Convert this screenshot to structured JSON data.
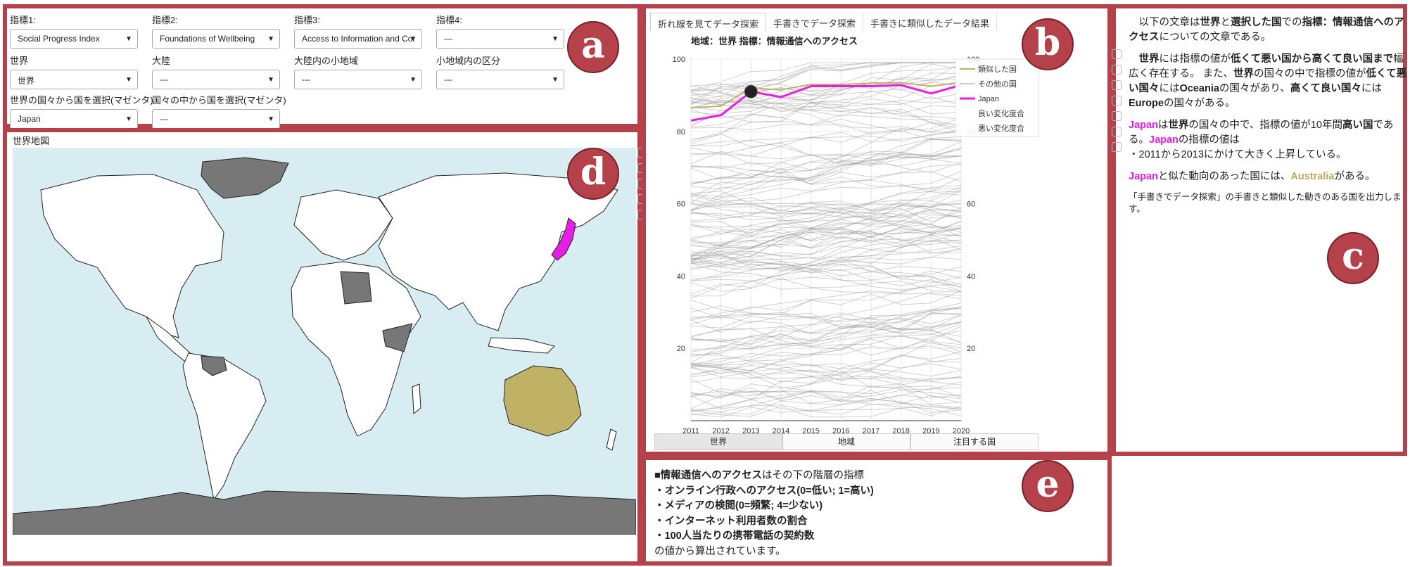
{
  "badges": {
    "a": "a",
    "b": "b",
    "c": "c",
    "d": "d",
    "e": "e"
  },
  "controls": {
    "indicator1": {
      "label": "指標1:",
      "value": "Social Progress Index"
    },
    "indicator2": {
      "label": "指標2:",
      "value": "Foundations of Wellbeing"
    },
    "indicator3": {
      "label": "指標3:",
      "value": "Access to Information and Cor"
    },
    "indicator4": {
      "label": "指標4:",
      "value": "---"
    },
    "world": {
      "label": "世界",
      "value": "世界"
    },
    "continent": {
      "label": "大陸",
      "value": "---"
    },
    "subregion": {
      "label": "大陸内の小地域",
      "value": "---"
    },
    "subdivision": {
      "label": "小地域内の区分",
      "value": "---"
    },
    "country_world": {
      "label": "世界の国々から国を選択(マゼンタ)",
      "value": "Japan"
    },
    "country_within": {
      "label": "国々の中から国を選択(マゼンタ)",
      "value": "---"
    }
  },
  "map": {
    "title": "世界地図",
    "ocean_color": "#d7edf2",
    "land_color": "#ffffff",
    "grey_color": "#7a7a7a",
    "japan_color": "#e61ee6",
    "australia_color": "#bfb265"
  },
  "chart_tabs": [
    "折れ線を見てデータ探索",
    "手書きでデータ探索",
    "手書きに類似したデータ結果"
  ],
  "bottom_tabs": [
    "世界",
    "地域",
    "注目する国"
  ],
  "chart_data": {
    "type": "line",
    "title": "地域：世界  指標：情報通信へのアクセス",
    "x": [
      2011,
      2012,
      2013,
      2014,
      2015,
      2016,
      2017,
      2018,
      2019,
      2020
    ],
    "ylim": [
      0,
      100
    ],
    "yticks": [
      20,
      40,
      60,
      80,
      100
    ],
    "legend_position": "top-right",
    "legend": [
      "類似した国",
      "その他の国",
      "Japan",
      "良い変化度合",
      "悪い変化度合"
    ],
    "series": [
      {
        "name": "Japan",
        "color": "#e61ee6",
        "values": [
          83,
          84.5,
          91,
          89.5,
          92.5,
          92.5,
          92.5,
          92.8,
          90.5,
          92.8
        ]
      },
      {
        "name": "類似した国",
        "color": "#bfb265",
        "values": [
          86.5,
          87,
          92,
          91.5,
          93,
          93,
          93.3,
          93.5,
          92.5,
          93.5
        ]
      }
    ],
    "highlight_point": {
      "x": 2013,
      "y": 91
    }
  },
  "description": {
    "intro_plain1": "以下の文章は",
    "intro_bold1": "世界",
    "intro_plain2": "と",
    "intro_bold2": "選択した国",
    "intro_plain3": "での",
    "intro_bold3": "指標：情報通信へのアクセス",
    "intro_plain4": "についての文章である。",
    "p2_bold1": "世界",
    "p2_plain1": "には指標の値が",
    "p2_bold2": "低くて悪い国から高くて良い国まで",
    "p2_plain2": "幅広く存在する。 また、",
    "p2_bold3": "世界",
    "p2_plain3": "の国々の中で指標の値が",
    "p2_bold4": "低くて悪い国々",
    "p2_plain4": "には",
    "p2_bold5": "Oceania",
    "p2_plain5": "の国々があり、",
    "p2_bold6": "高くて良い国々",
    "p2_plain6": "には",
    "p2_bold7": "Europe",
    "p2_plain7": "の国々がある。",
    "p3_country": "Japan",
    "p3_plain1": "は",
    "p3_bold1": "世界",
    "p3_plain2": "の国々の中で、指標の値が10年間",
    "p3_bold2": "高い国",
    "p3_plain3": "である。",
    "p3_country2": "Japan",
    "p3_plain4": "の指標の値は",
    "p3_line": "・2011から2013にかけて大きく上昇している。",
    "p4_country": "Japan",
    "p4_plain1": "と似た動向のあった国には、",
    "p4_similar": "Australia",
    "p4_plain2": "がある。",
    "p5": "「手書きでデータ探索」の手書きと類似した動きのある国を出力します。"
  },
  "indicator_info": {
    "head_bold": "■情報通信へのアクセス",
    "head_plain": "はその下の階層の指標",
    "items": [
      "・オンライン行政へのアクセス(0=低い; 1=高い)",
      "・メディアの検閲(0=頻繁; 4=少ない)",
      "・インターネット利用者数の割合",
      "・100人当たりの携帯電話の契約数"
    ],
    "footer": "の値から算出されています。"
  }
}
